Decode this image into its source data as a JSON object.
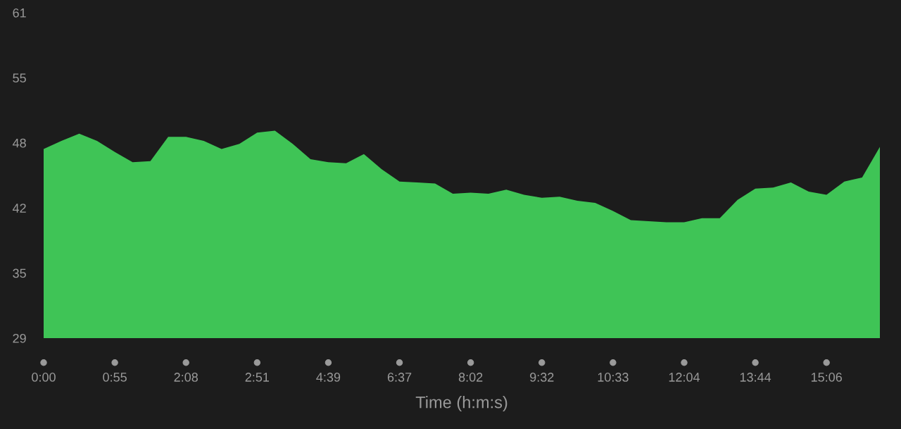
{
  "chart_data": {
    "type": "area",
    "xlabel": "Time (h:m:s)",
    "categories": [
      "0:00",
      null,
      null,
      null,
      "0:55",
      null,
      null,
      null,
      "2:08",
      null,
      null,
      null,
      "2:51",
      null,
      null,
      null,
      "4:39",
      null,
      null,
      null,
      "6:37",
      null,
      null,
      null,
      "8:02",
      null,
      null,
      null,
      "9:32",
      null,
      null,
      null,
      "10:33",
      null,
      null,
      null,
      "12:04",
      null,
      null,
      null,
      "13:44",
      null,
      null,
      null,
      "15:06",
      null,
      null,
      null
    ],
    "series": [
      {
        "color": "#3fc456",
        "values": [
          47.6,
          48.4,
          49.1,
          48.4,
          47.3,
          46.3,
          46.4,
          48.8,
          48.8,
          48.4,
          47.6,
          48.1,
          49.2,
          49.4,
          48.1,
          46.6,
          46.3,
          46.2,
          47.1,
          45.6,
          44.4,
          44.3,
          44.2,
          43.2,
          43.3,
          43.2,
          43.6,
          43.1,
          42.8,
          42.9,
          42.5,
          42.3,
          41.5,
          40.6,
          40.5,
          40.4,
          40.4,
          40.8,
          40.8,
          42.6,
          43.7,
          43.8,
          44.3,
          43.4,
          43.1,
          44.4,
          44.8,
          47.8
        ]
      }
    ],
    "ylim": [
      29,
      61
    ],
    "yticks": [
      29,
      {
        "value": 35.4,
        "label": "35"
      },
      {
        "value": 41.8,
        "label": "42"
      },
      {
        "value": 48.2,
        "label": "48"
      },
      {
        "value": 54.6,
        "label": "55"
      },
      61
    ]
  }
}
